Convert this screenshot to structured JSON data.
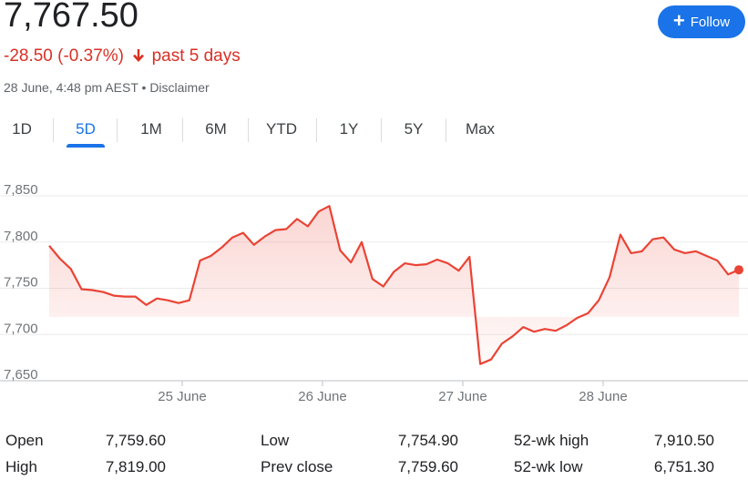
{
  "quote": {
    "price": "7,767.50",
    "change": "-28.50 (-0.37%)",
    "period": "past 5 days",
    "timestamp": "28 June, 4:48 pm AEST",
    "separator": "•",
    "disclaimer": "Disclaimer"
  },
  "follow_button": {
    "label": "Follow",
    "icon": "plus-icon"
  },
  "tabs": [
    "1D",
    "5D",
    "1M",
    "6M",
    "YTD",
    "1Y",
    "5Y",
    "Max"
  ],
  "active_tab": "5D",
  "colors": {
    "accent": "#1a73e8",
    "negative": "#d93025",
    "line": "#ea4335"
  },
  "chart_data": {
    "type": "area",
    "ylim": [
      7650,
      7850
    ],
    "y_ticks": [
      "7,850",
      "7,800",
      "7,750",
      "7,700",
      "7,650"
    ],
    "x_ticks": [
      "25 June",
      "26 June",
      "27 June",
      "28 June"
    ],
    "grid": true,
    "series": [
      {
        "values": [
          7796,
          7782,
          7771,
          7749,
          7748,
          7746,
          7742,
          7741,
          7741,
          7732,
          7739,
          7737,
          7734,
          7737,
          7780,
          7785,
          7794,
          7805,
          7810,
          7797,
          7806,
          7813,
          7814,
          7825,
          7817,
          7833,
          7839,
          7791,
          7778,
          7800,
          7760,
          7752,
          7768,
          7777,
          7775,
          7776,
          7781,
          7777,
          7769,
          7784,
          7668,
          7673,
          7690,
          7698,
          7708,
          7703,
          7706,
          7704,
          7710,
          7718,
          7723,
          7737,
          7762,
          7808,
          7788,
          7790,
          7803,
          7805,
          7792,
          7788,
          7790,
          7785,
          7780,
          7765,
          7770
        ]
      }
    ],
    "last_value": 7770
  },
  "stats": [
    {
      "label": "Open",
      "value": "7,759.60"
    },
    {
      "label": "High",
      "value": "7,819.00"
    },
    {
      "label": "Low",
      "value": "7,754.90"
    },
    {
      "label": "Prev close",
      "value": "7,759.60"
    },
    {
      "label": "52-wk high",
      "value": "7,910.50"
    },
    {
      "label": "52-wk low",
      "value": "6,751.30"
    }
  ]
}
